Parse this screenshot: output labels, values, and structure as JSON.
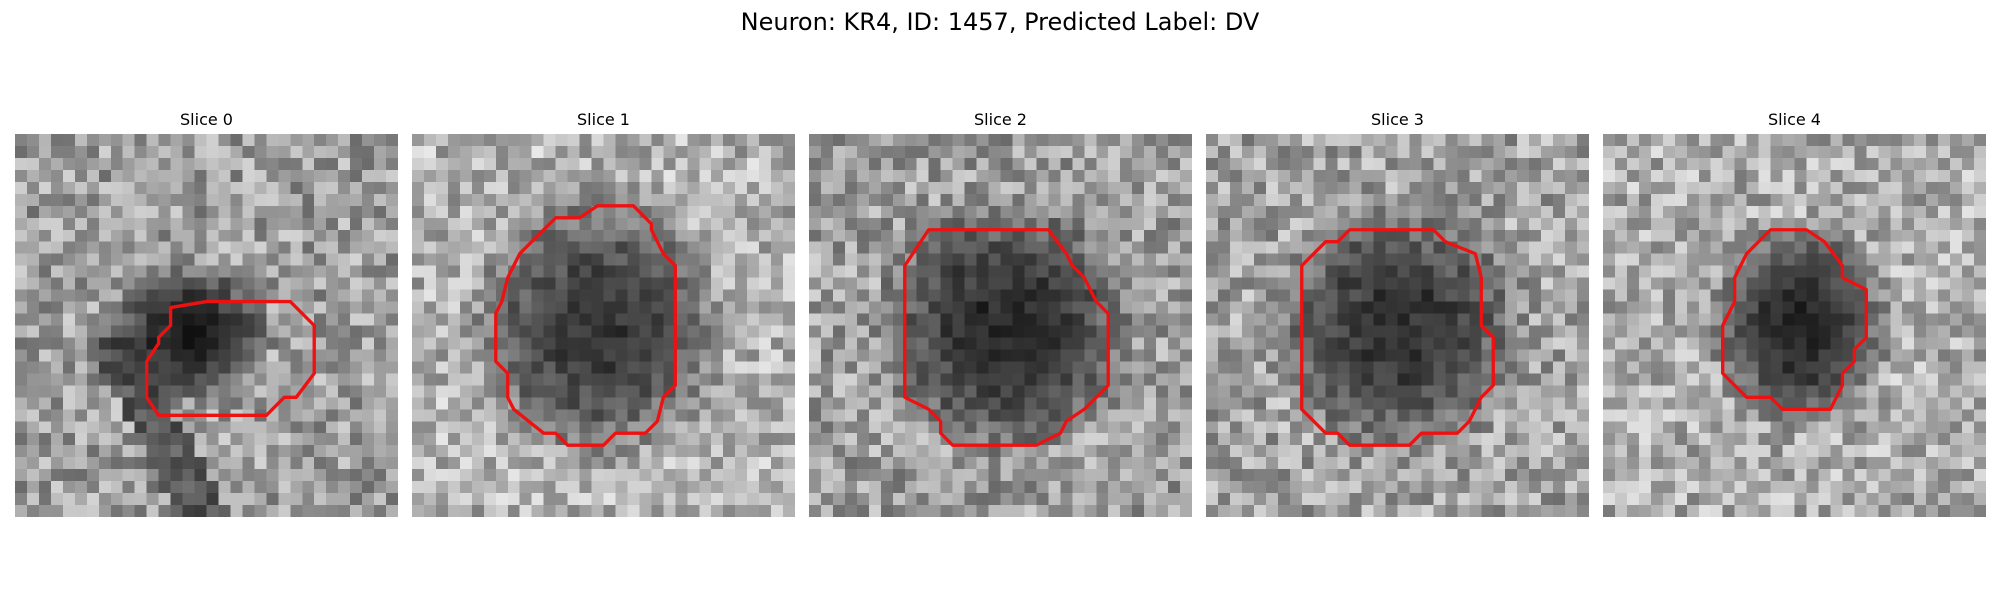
{
  "figure": {
    "title": "Neuron: KR4, ID: 1457, Predicted Label: DV",
    "contour_color": "#ee1111"
  },
  "slices": [
    {
      "title": "Slice 0"
    },
    {
      "title": "Slice 1"
    },
    {
      "title": "Slice 2"
    },
    {
      "title": "Slice 3"
    },
    {
      "title": "Slice 4"
    }
  ]
}
